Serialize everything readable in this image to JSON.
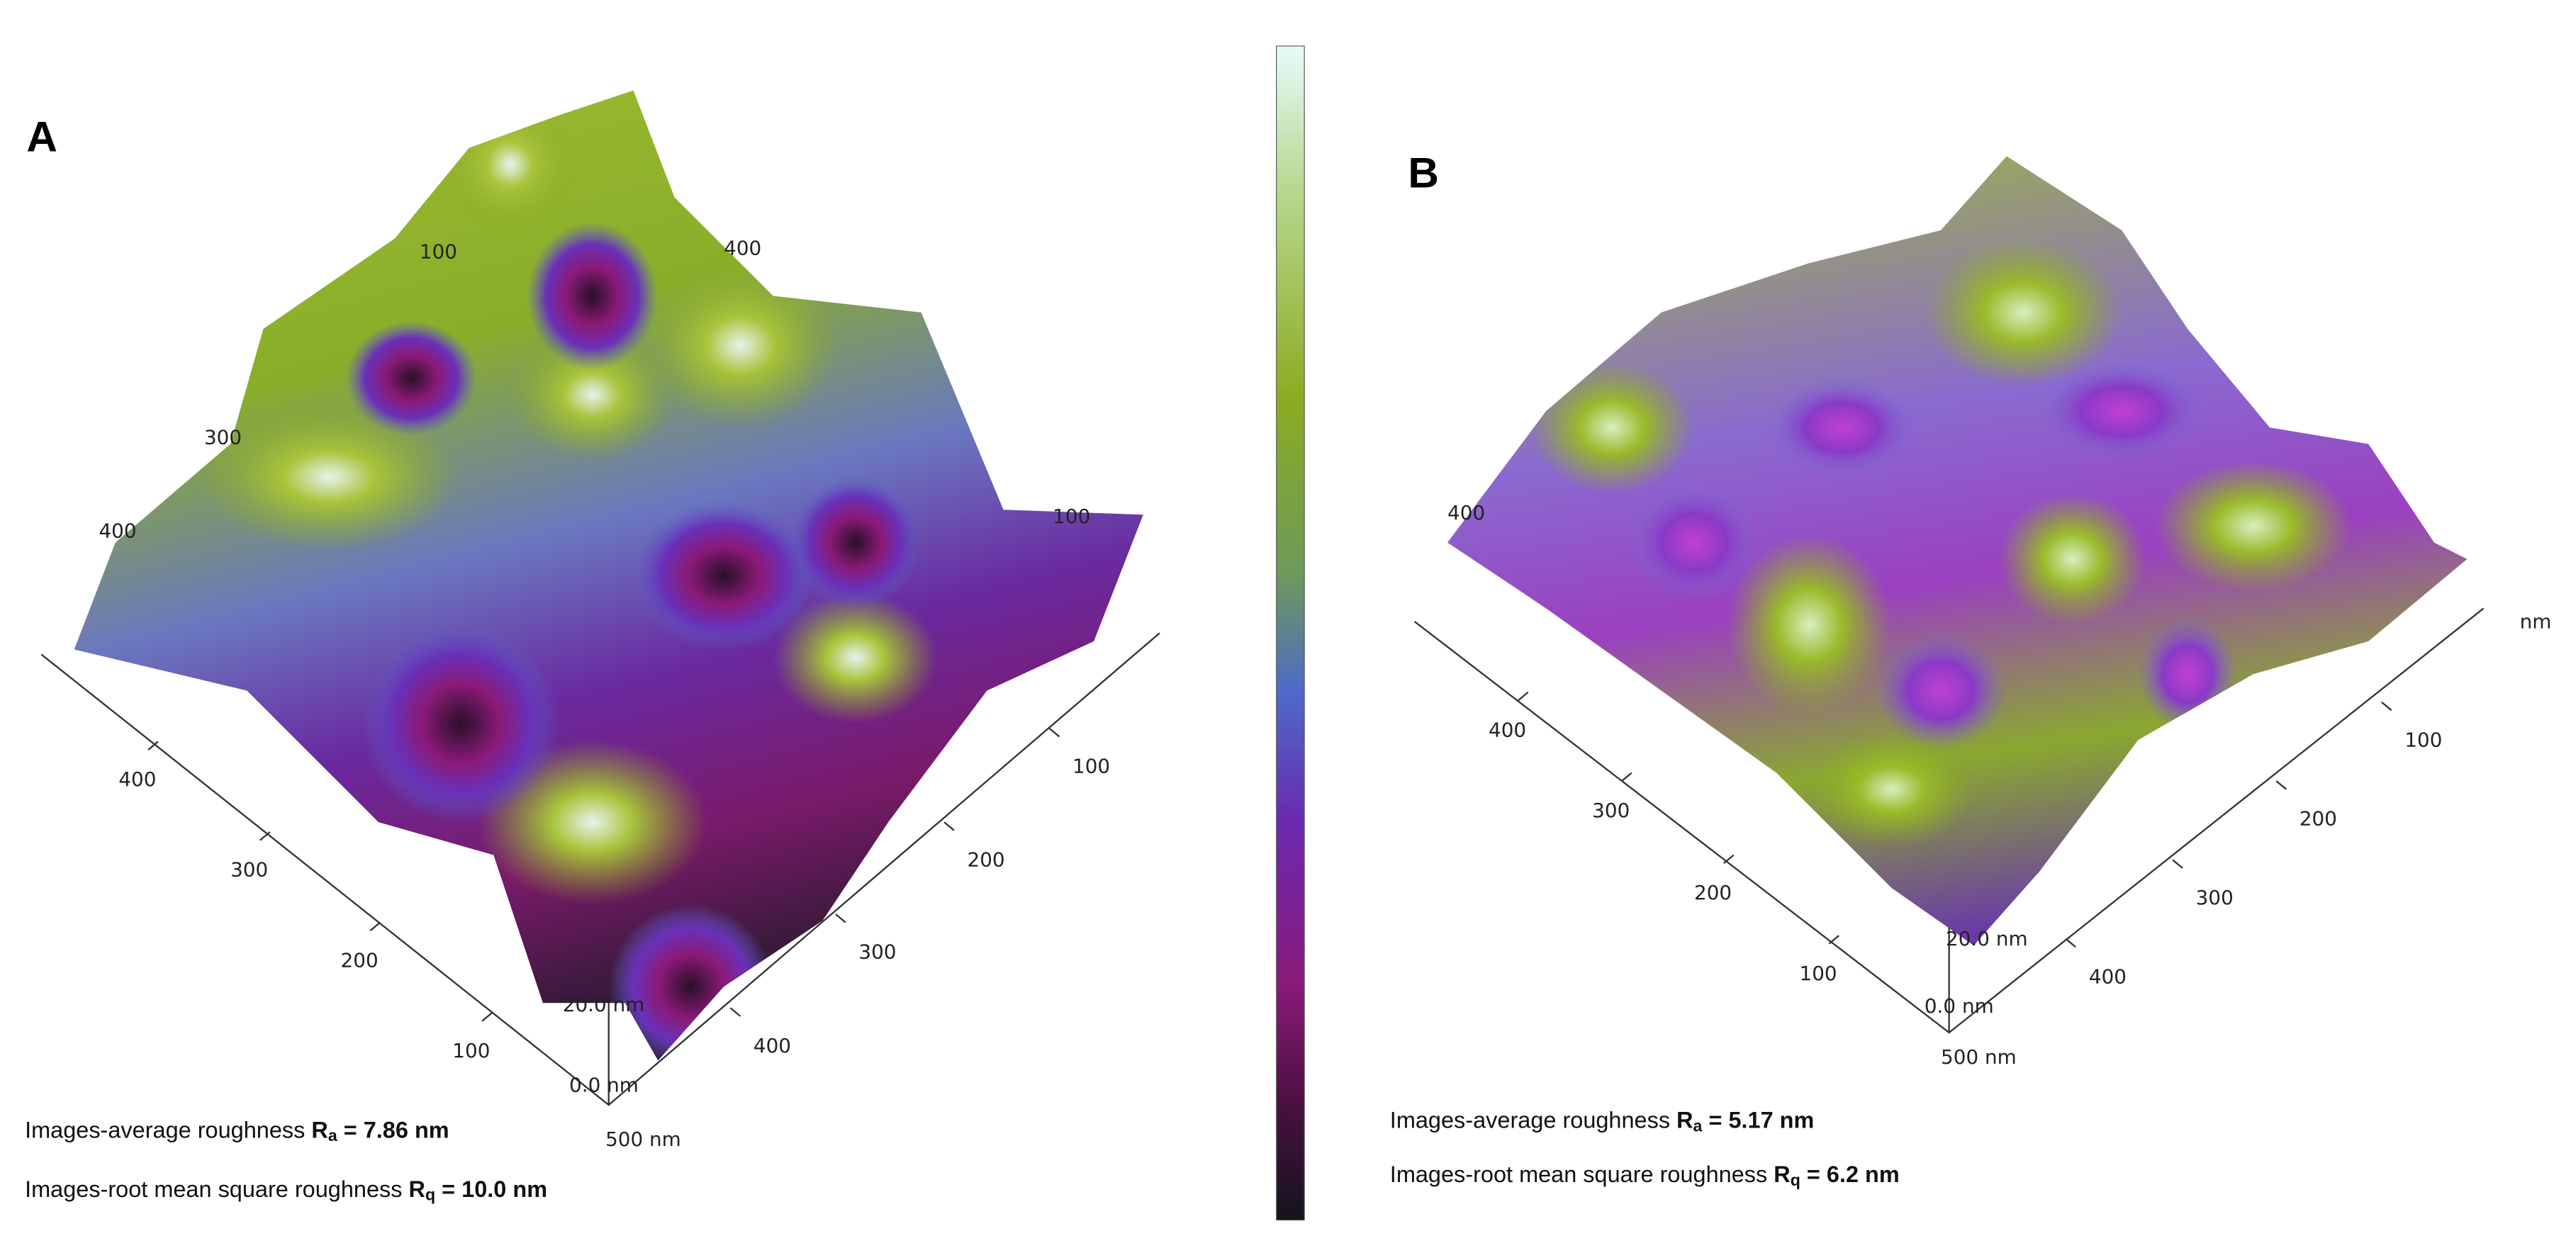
{
  "panels": [
    {
      "label": "A",
      "left_axis": [
        "400",
        "300",
        "200",
        "100"
      ],
      "right_axis": [
        "100",
        "200",
        "300",
        "400"
      ],
      "back_labels": [
        "100",
        "400",
        "300",
        "400",
        "100"
      ],
      "z_top": "20.0 nm",
      "z_bottom": "0.0 nm",
      "corner": "500 nm",
      "roughness": [
        {
          "prefix": "Images-average roughness ",
          "symbol": "R",
          "subscript": "a",
          "value": " = 7.86 nm"
        },
        {
          "prefix": "Images-root mean square roughness ",
          "symbol": "R",
          "subscript": "q",
          "value": " = 10.0 nm"
        }
      ]
    },
    {
      "label": "B",
      "left_axis": [
        "400",
        "300",
        "200",
        "100"
      ],
      "right_axis": [
        "100",
        "200",
        "300",
        "400"
      ],
      "back_labels": [
        "400"
      ],
      "z_top": "20.0 nm",
      "z_bottom": "0.0 nm",
      "corner": "500 nm",
      "unit": "nm",
      "roughness": [
        {
          "prefix": "Images-average roughness ",
          "symbol": "R",
          "subscript": "a",
          "value": " = 5.17 nm"
        },
        {
          "prefix": "Images-root mean square roughness ",
          "symbol": "R",
          "subscript": "q",
          "value": " = 6.2 nm"
        }
      ]
    }
  ]
}
